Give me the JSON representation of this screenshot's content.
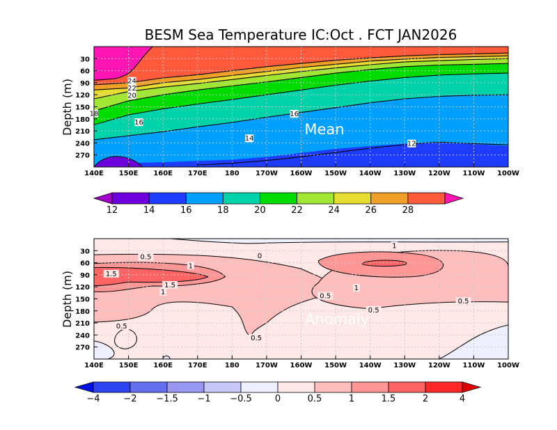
{
  "title": "BESM Sea Temperature  IC:Oct . FCT JAN2026",
  "chart_data": [
    {
      "type": "heatmap",
      "panel_label": "Mean",
      "xlabel": "",
      "ylabel": "Depth (m)",
      "x_ticks": [
        "140E",
        "150E",
        "160E",
        "170E",
        "180",
        "170W",
        "160W",
        "150W",
        "140W",
        "130W",
        "120W",
        "110W",
        "100W"
      ],
      "y_ticks": [
        "30",
        "60",
        "90",
        "120",
        "150",
        "180",
        "210",
        "240",
        "270"
      ],
      "xlim_deg_east": [
        140,
        260
      ],
      "ylim_depth_m": [
        0,
        300
      ],
      "colorbar_levels": [
        12,
        14,
        16,
        18,
        20,
        22,
        24,
        26,
        28
      ],
      "colorbar_labels": [
        "12",
        "14",
        "16",
        "18",
        "20",
        "22",
        "24",
        "26",
        "28"
      ],
      "colorbar_colors": [
        "#a000c8",
        "#6e00dc",
        "#1e3cff",
        "#00a0ff",
        "#00d2aa",
        "#00dc00",
        "#a0e632",
        "#e6dc32",
        "#f0a028",
        "#ff5a3c",
        "#ff14b4"
      ],
      "contour_labels": [
        "24",
        "22",
        "20",
        "18",
        "16",
        "16",
        "14",
        "12"
      ],
      "isotherm_depths_m": {
        "lon_deg_east": [
          140,
          150,
          160,
          170,
          180,
          190,
          200,
          210,
          220,
          230,
          240,
          250,
          260
        ],
        "26": [
          5,
          4,
          0,
          0,
          0,
          0,
          0,
          0,
          0,
          0,
          0,
          0,
          0
        ],
        "24": [
          95,
          90,
          78,
          70,
          60,
          50,
          42,
          34,
          28,
          23,
          20,
          18,
          16
        ],
        "22": [
          108,
          103,
          90,
          82,
          72,
          62,
          52,
          44,
          36,
          31,
          27,
          25,
          23
        ],
        "20": [
          130,
          112,
          101,
          92,
          82,
          72,
          62,
          53,
          45,
          38,
          35,
          32,
          30
        ],
        "18": [
          160,
          135,
          120,
          108,
          98,
          88,
          77,
          66,
          57,
          50,
          46,
          44,
          42
        ],
        "16": [
          195,
          170,
          155,
          143,
          132,
          120,
          108,
          96,
          86,
          77,
          71,
          68,
          66
        ],
        "14": [
          232,
          222,
          212,
          200,
          189,
          176,
          164,
          152,
          140,
          130,
          124,
          121,
          120
        ],
        "12": [
          300,
          290,
          288,
          285,
          282,
          275,
          265,
          255,
          248,
          242,
          240,
          243,
          248
        ]
      }
    },
    {
      "type": "heatmap",
      "panel_label": "Anomaly",
      "xlabel": "",
      "ylabel": "Depth (m)",
      "x_ticks": [
        "140E",
        "150E",
        "160E",
        "170E",
        "180",
        "170W",
        "160W",
        "150W",
        "140W",
        "130W",
        "120W",
        "110W",
        "100W"
      ],
      "y_ticks": [
        "30",
        "60",
        "90",
        "120",
        "150",
        "180",
        "210",
        "240",
        "270"
      ],
      "xlim_deg_east": [
        140,
        260
      ],
      "ylim_depth_m": [
        0,
        300
      ],
      "colorbar_levels": [
        -4,
        -2,
        -1.5,
        -1,
        -0.5,
        0,
        0.5,
        1,
        1.5,
        2,
        4
      ],
      "colorbar_labels": [
        "−4",
        "−2",
        "−1.5",
        "−1",
        "−0.5",
        "0",
        "0.5",
        "1",
        "1.5",
        "2",
        "4"
      ],
      "colorbar_colors": [
        "#0010e0",
        "#2e44f0",
        "#6470f0",
        "#9898f2",
        "#c8c8f8",
        "#eef0ff",
        "#ffe8e8",
        "#ffbebe",
        "#ff9696",
        "#ff6464",
        "#ff2828",
        "#e00000"
      ],
      "contour_labels": [
        "0",
        "0.5",
        "0.5",
        "0.5",
        "0.5",
        "0.5",
        "0.5",
        "1",
        "1",
        "1",
        "1",
        "1.5",
        "1.5"
      ],
      "notes": "Mostly weak warm anomalies (0 to 1.5 C); core >1.5 C near 145E-170E at 75-125 m and near 140W at 60-70 m; slightly negative (<0) patches near surface 160W-110W and at depth near 140E and 110W-100W."
    }
  ]
}
